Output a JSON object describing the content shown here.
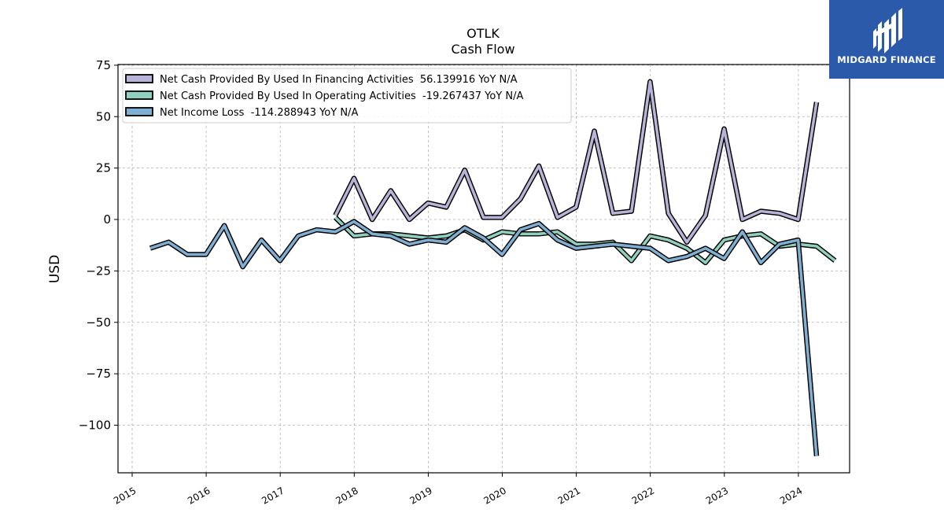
{
  "chart_data": {
    "type": "line",
    "title": "OTLK",
    "subtitle": "Cash Flow",
    "ylabel": "USD",
    "xlabel": "",
    "ylim": [
      -123,
      75
    ],
    "yticks": [
      75,
      50,
      25,
      0,
      -25,
      -50,
      -75,
      -100
    ],
    "xticks": [
      "2015",
      "2016",
      "2017",
      "2018",
      "2019",
      "2020",
      "2021",
      "2022",
      "2023",
      "2024"
    ],
    "grid": true,
    "legend_position": "top-left",
    "series": [
      {
        "name": "Net Cash Provided By Used In Financing Activities  56.139916 YoY N/A",
        "color": "#b7b4d7",
        "points": [
          [
            "2017-09-30",
            2
          ],
          [
            "2017-12-31",
            20
          ],
          [
            "2018-03-31",
            0
          ],
          [
            "2018-06-30",
            14
          ],
          [
            "2018-09-30",
            0
          ],
          [
            "2018-12-31",
            8
          ],
          [
            "2019-03-31",
            6
          ],
          [
            "2019-06-30",
            24
          ],
          [
            "2019-09-30",
            1
          ],
          [
            "2019-12-31",
            1
          ],
          [
            "2020-03-31",
            10
          ],
          [
            "2020-06-30",
            26
          ],
          [
            "2020-09-30",
            1
          ],
          [
            "2020-12-31",
            6
          ],
          [
            "2021-03-31",
            43
          ],
          [
            "2021-06-30",
            3
          ],
          [
            "2021-09-30",
            4
          ],
          [
            "2021-12-31",
            67
          ],
          [
            "2022-03-31",
            3
          ],
          [
            "2022-06-30",
            -11
          ],
          [
            "2022-09-30",
            2
          ],
          [
            "2022-12-31",
            44
          ],
          [
            "2023-03-31",
            0
          ],
          [
            "2023-06-30",
            4
          ],
          [
            "2023-09-30",
            3
          ],
          [
            "2023-12-31",
            0
          ],
          [
            "2024-03-31",
            57
          ]
        ]
      },
      {
        "name": "Net Cash Provided By Used In Operating Activities  -19.267437 YoY N/A",
        "color": "#8fd1be",
        "points": [
          [
            "2017-09-30",
            1
          ],
          [
            "2017-12-31",
            -8
          ],
          [
            "2018-03-31",
            -7
          ],
          [
            "2018-06-30",
            -7
          ],
          [
            "2018-09-30",
            -8
          ],
          [
            "2018-12-31",
            -9
          ],
          [
            "2019-03-31",
            -8
          ],
          [
            "2019-06-30",
            -5
          ],
          [
            "2019-09-30",
            -10
          ],
          [
            "2019-12-31",
            -6
          ],
          [
            "2020-03-31",
            -7
          ],
          [
            "2020-06-30",
            -7
          ],
          [
            "2020-09-30",
            -6
          ],
          [
            "2020-12-31",
            -12
          ],
          [
            "2021-03-31",
            -12
          ],
          [
            "2021-06-30",
            -11
          ],
          [
            "2021-09-30",
            -20
          ],
          [
            "2021-12-31",
            -8
          ],
          [
            "2022-03-31",
            -10
          ],
          [
            "2022-06-30",
            -14
          ],
          [
            "2022-09-30",
            -21
          ],
          [
            "2022-12-31",
            -10
          ],
          [
            "2023-03-31",
            -8
          ],
          [
            "2023-06-30",
            -7
          ],
          [
            "2023-09-30",
            -13
          ],
          [
            "2023-12-31",
            -12
          ],
          [
            "2024-03-31",
            -13
          ],
          [
            "2024-06-30",
            -20
          ]
        ]
      },
      {
        "name": "Net Income Loss  -114.288943 YoY N/A",
        "color": "#7fb0d3",
        "points": [
          [
            "2015-03-31",
            -14
          ],
          [
            "2015-06-30",
            -11
          ],
          [
            "2015-09-30",
            -17
          ],
          [
            "2015-12-31",
            -17
          ],
          [
            "2016-03-31",
            -3
          ],
          [
            "2016-06-30",
            -23
          ],
          [
            "2016-09-30",
            -10
          ],
          [
            "2016-12-31",
            -20
          ],
          [
            "2017-03-31",
            -8
          ],
          [
            "2017-06-30",
            -5
          ],
          [
            "2017-09-30",
            -6
          ],
          [
            "2017-12-31",
            -1
          ],
          [
            "2018-03-31",
            -7
          ],
          [
            "2018-06-30",
            -8
          ],
          [
            "2018-09-30",
            -12
          ],
          [
            "2018-12-31",
            -10
          ],
          [
            "2019-03-31",
            -11
          ],
          [
            "2019-06-30",
            -4
          ],
          [
            "2019-09-30",
            -9
          ],
          [
            "2019-12-31",
            -17
          ],
          [
            "2020-03-31",
            -5
          ],
          [
            "2020-06-30",
            -2
          ],
          [
            "2020-09-30",
            -10
          ],
          [
            "2020-12-31",
            -14
          ],
          [
            "2021-03-31",
            -13
          ],
          [
            "2021-06-30",
            -12
          ],
          [
            "2021-09-30",
            -13
          ],
          [
            "2021-12-31",
            -14
          ],
          [
            "2022-03-31",
            -20
          ],
          [
            "2022-06-30",
            -18
          ],
          [
            "2022-09-30",
            -14
          ],
          [
            "2022-12-31",
            -19
          ],
          [
            "2023-03-31",
            -6
          ],
          [
            "2023-06-30",
            -21
          ],
          [
            "2023-09-30",
            -12
          ],
          [
            "2023-12-31",
            -10
          ],
          [
            "2024-03-31",
            -115
          ]
        ]
      }
    ]
  },
  "logo": {
    "text": "MIDGARD FINANCE",
    "bg_color": "#2b5aab"
  }
}
